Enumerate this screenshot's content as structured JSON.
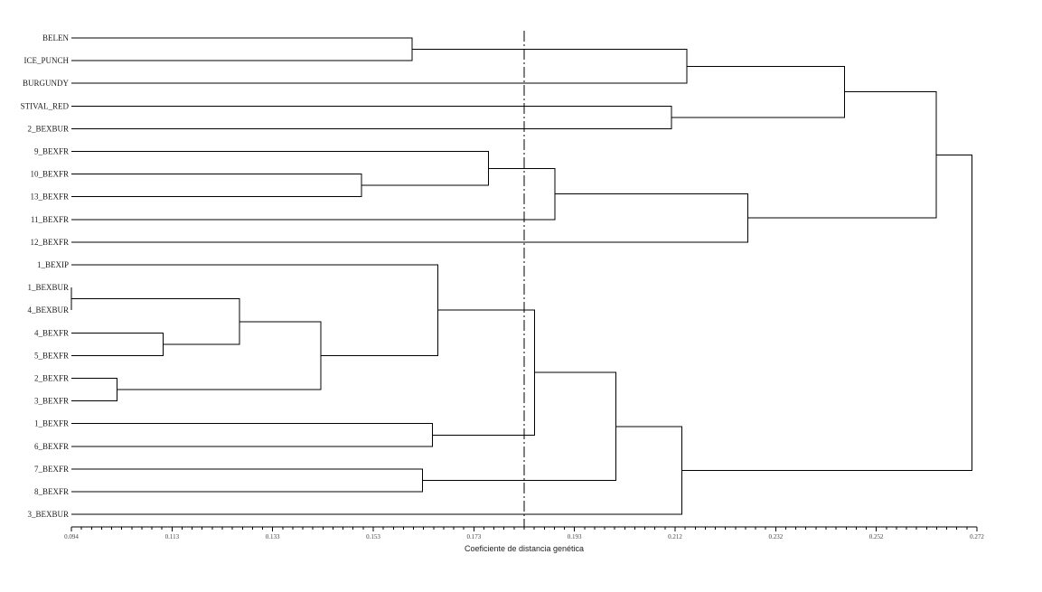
{
  "chart_data": {
    "type": "dendrogram",
    "xlabel": "Coeficiente de distancia genética",
    "xlim": [
      0.094,
      0.272
    ],
    "xticks": [
      "0.094",
      "0.113",
      "0.133",
      "0.153",
      "0.173",
      "0.193",
      "0.212",
      "0.232",
      "0.252",
      "0.272"
    ],
    "leaves": [
      "BELEN",
      "ICE_PUNCH",
      "BURGUNDY",
      "STIVAL_RED",
      "2_BEXBUR",
      "9_BEXFR",
      "10_BEXFR",
      "13_BEXFR",
      "11_BEXFR",
      "12_BEXFR",
      "1_BEXIP",
      "1_BEXBUR",
      "4_BEXBUR",
      "4_BEXFR",
      "5_BEXFR",
      "2_BEXFR",
      "3_BEXFR",
      "1_BEXFR",
      "6_BEXFR",
      "7_BEXFR",
      "8_BEXFR",
      "3_BEXBUR"
    ],
    "cutoff": 0.183,
    "merges": [
      {
        "a": 11,
        "b": 12,
        "h": 0.094
      },
      {
        "a": 15,
        "b": 16,
        "h": 0.103
      },
      {
        "a": 13,
        "b": 14,
        "h": 0.112
      },
      {
        "a": -1,
        "b": -3,
        "h": 0.127
      },
      {
        "a": -4,
        "b": -2,
        "h": 0.143
      },
      {
        "a": 6,
        "b": 7,
        "h": 0.151
      },
      {
        "a": 0,
        "b": 1,
        "h": 0.161
      },
      {
        "a": 10,
        "b": -5,
        "h": 0.166
      },
      {
        "a": 17,
        "b": 18,
        "h": 0.165
      },
      {
        "a": 19,
        "b": 20,
        "h": 0.163
      },
      {
        "a": 5,
        "b": -6,
        "h": 0.176
      },
      {
        "a": 8,
        "b": -11,
        "h": 0.189
      },
      {
        "a": -8,
        "b": -9,
        "h": 0.185
      },
      {
        "a": -13,
        "b": -10,
        "h": 0.201
      },
      {
        "a": -14,
        "b": 21,
        "h": 0.214
      },
      {
        "a": 3,
        "b": 4,
        "h": 0.212
      },
      {
        "a": -7,
        "b": 2,
        "h": 0.215
      },
      {
        "a": -12,
        "b": 9,
        "h": 0.227
      },
      {
        "a": -17,
        "b": -16,
        "h": 0.246
      },
      {
        "a": -19,
        "b": -18,
        "h": 0.264
      },
      {
        "a": -20,
        "b": -15,
        "h": 0.271
      }
    ]
  }
}
